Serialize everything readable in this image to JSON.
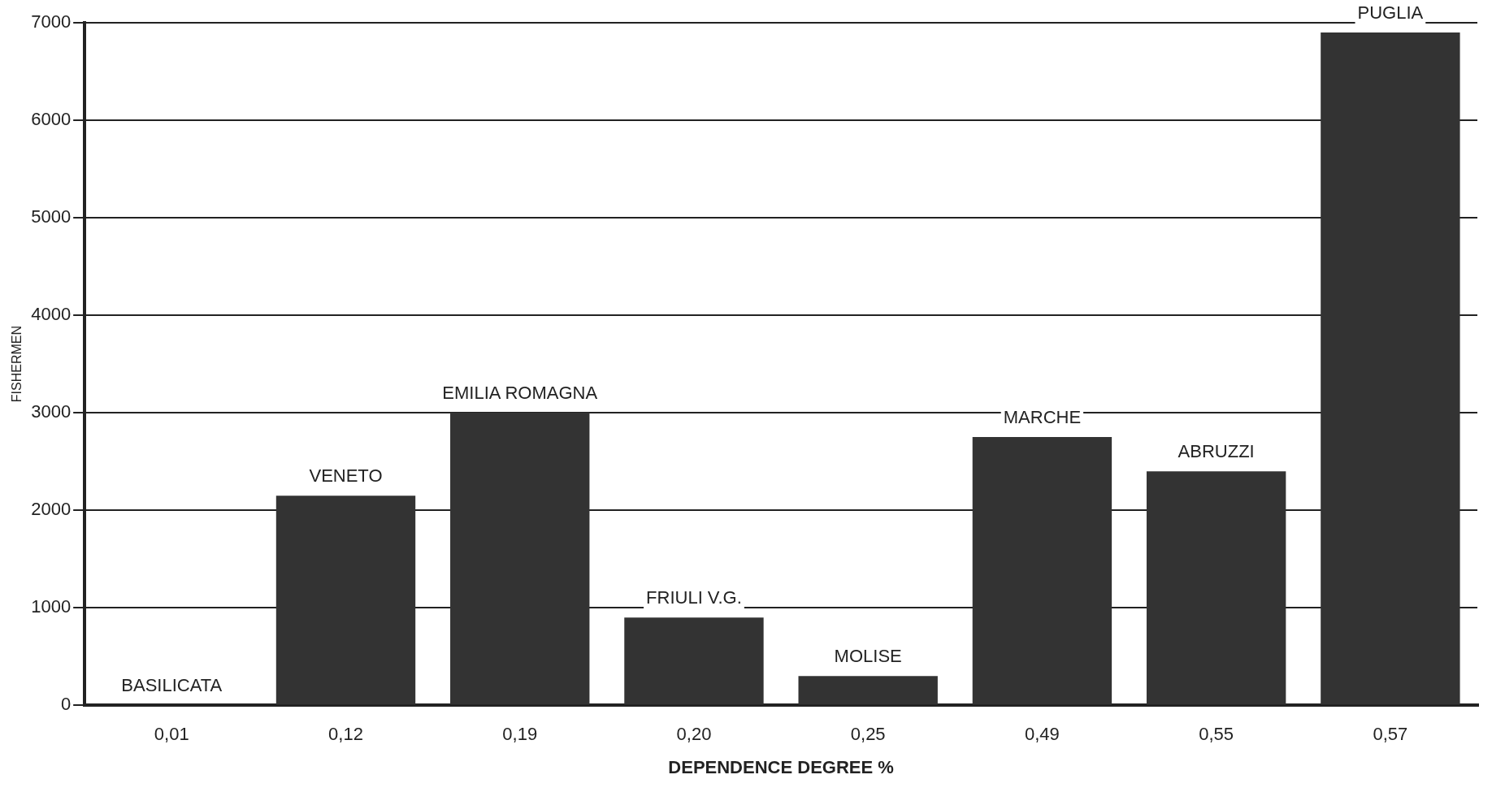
{
  "chart_data": {
    "type": "bar",
    "xlabel": "DEPENDENCE DEGREE %",
    "ylabel": "FISHERMEN",
    "categories": [
      "0,01",
      "0,12",
      "0,19",
      "0,20",
      "0,25",
      "0,49",
      "0,55",
      "0,57"
    ],
    "values": [
      0,
      2150,
      3000,
      900,
      300,
      2750,
      2400,
      6900
    ],
    "color": "#333333",
    "ylim": [
      0,
      7000
    ],
    "yticks": [
      0,
      1000,
      2000,
      3000,
      4000,
      5000,
      6000,
      7000
    ],
    "grid": "y",
    "annotations": [
      {
        "text": "BASILICATA",
        "x": "0,01",
        "y": 0
      },
      {
        "text": "VENETO",
        "x": "0,12",
        "y": 2150
      },
      {
        "text": "EMILIA ROMAGNA",
        "x": "0,19",
        "y": 3000
      },
      {
        "text": "FRIULI V.G.",
        "x": "0,20",
        "y": 900
      },
      {
        "text": "MOLISE",
        "x": "0,25",
        "y": 300
      },
      {
        "text": "MARCHE",
        "x": "0,49",
        "y": 2750
      },
      {
        "text": "ABRUZZI",
        "x": "0,55",
        "y": 2400
      },
      {
        "text": "PUGLIA",
        "x": "0,57",
        "y": 6900
      }
    ]
  }
}
